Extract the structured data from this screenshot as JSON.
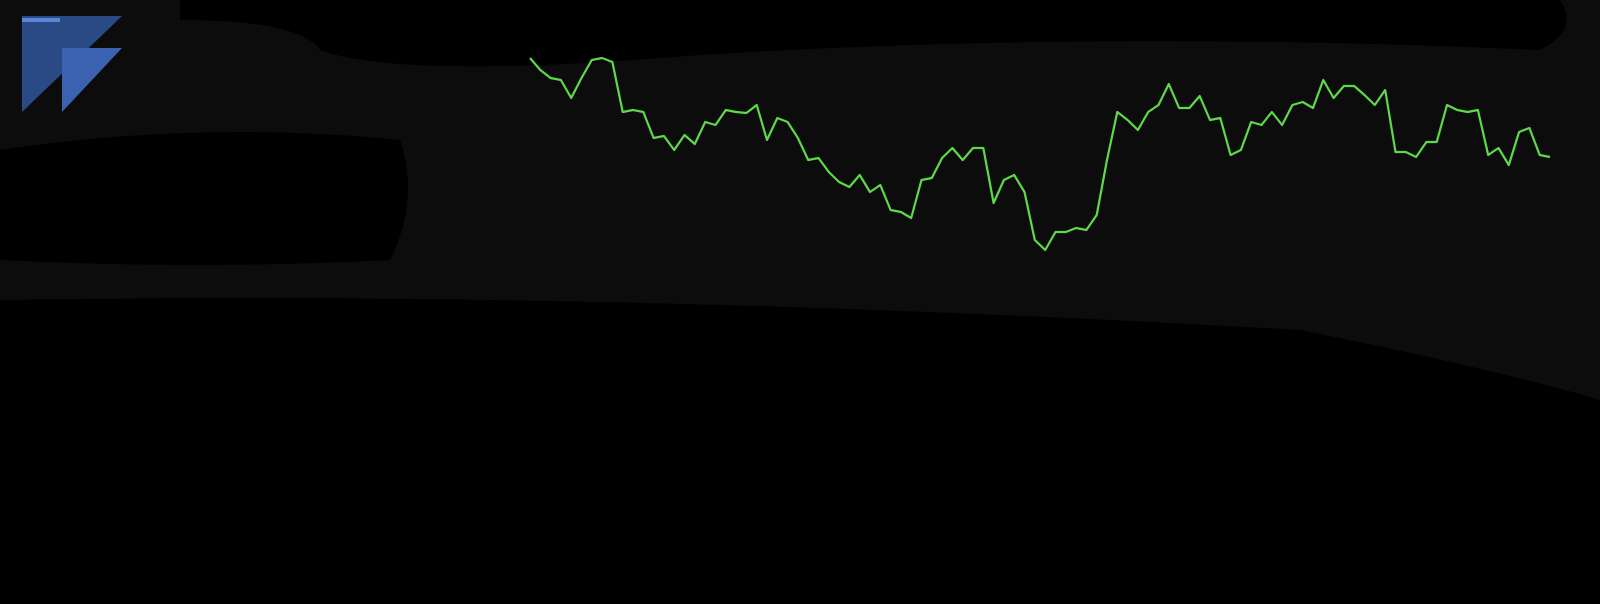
{
  "chart_data": {
    "type": "line",
    "color": "#5ed94a",
    "ylim": [
      0,
      300
    ],
    "values": [
      242,
      230,
      222,
      220,
      202,
      222,
      240,
      242,
      238,
      188,
      190,
      188,
      162,
      164,
      150,
      165,
      156,
      178,
      175,
      190,
      188,
      187,
      195,
      160,
      182,
      178,
      162,
      140,
      142,
      128,
      118,
      113,
      125,
      108,
      115,
      90,
      88,
      82,
      120,
      122,
      142,
      152,
      140,
      152,
      152,
      97,
      120,
      125,
      108,
      60,
      50,
      68,
      68,
      72,
      70,
      85,
      140,
      188,
      180,
      170,
      188,
      195,
      216,
      192,
      192,
      204,
      180,
      182,
      145,
      150,
      178,
      175,
      188,
      175,
      195,
      198,
      192,
      220,
      202,
      214,
      214,
      205,
      195,
      210,
      148,
      148,
      143,
      158,
      158,
      195,
      190,
      188,
      190,
      145,
      152,
      135,
      168,
      172,
      145,
      143
    ]
  }
}
